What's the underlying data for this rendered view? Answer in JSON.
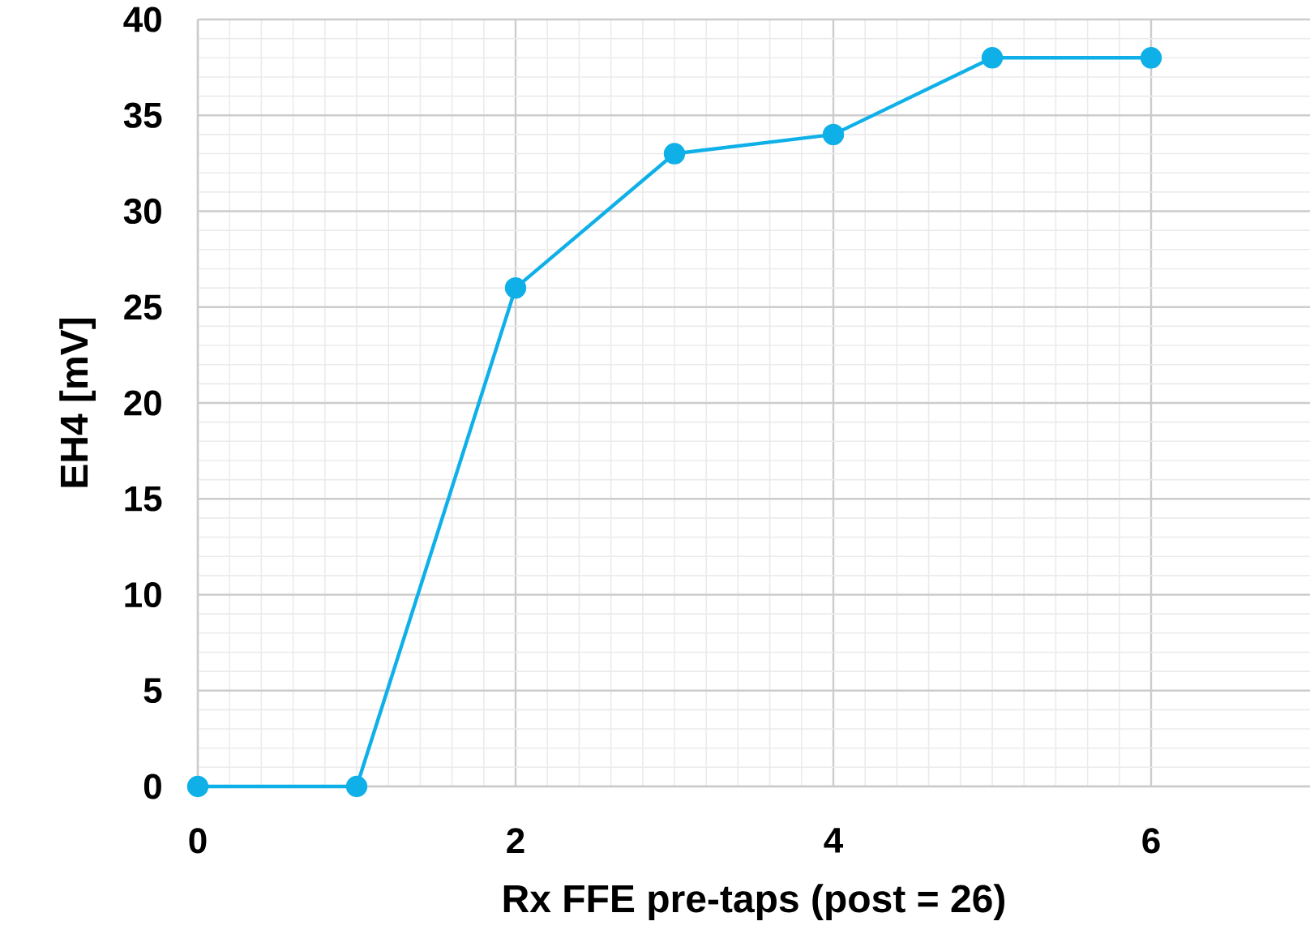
{
  "chart_data": {
    "type": "line",
    "xlabel": "Rx FFE pre-taps (post = 26)",
    "ylabel": "EH4 [mV]",
    "x": [
      0,
      1,
      2,
      3,
      4,
      5,
      6
    ],
    "series": [
      {
        "color": "#0fb0e8",
        "values": [
          0,
          0,
          26,
          33,
          34,
          38,
          38
        ]
      }
    ],
    "xlim": [
      0,
      7
    ],
    "ylim": [
      0,
      40
    ],
    "xticks": [
      0,
      2,
      4,
      6
    ],
    "yticks": [
      0,
      5,
      10,
      15,
      20,
      25,
      30,
      35,
      40
    ],
    "grid": true,
    "marker": "circle",
    "line_style": "solid"
  }
}
